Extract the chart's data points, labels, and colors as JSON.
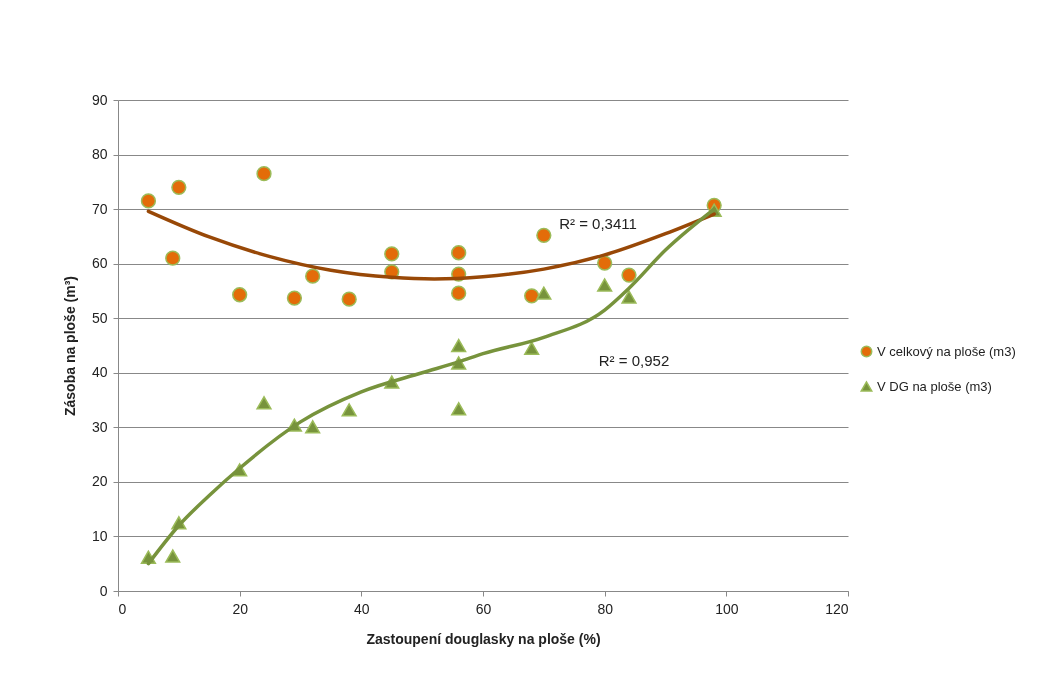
{
  "chart_data": {
    "type": "scatter",
    "xlabel": "Zastoupení douglasky na ploše (%)",
    "ylabel": "Zásoba na ploše (m³)",
    "xlim": [
      0,
      120
    ],
    "xticks": [
      0,
      20,
      40,
      60,
      80,
      100,
      120
    ],
    "ylim": [
      0,
      90
    ],
    "yticks": [
      0,
      10,
      20,
      30,
      40,
      50,
      60,
      70,
      80,
      90
    ],
    "grid": "y",
    "legend": "right",
    "series": [
      {
        "name": "V celkový na ploše (m3)",
        "color": "#e36c09",
        "marker": "circle",
        "x": [
          5,
          10,
          9,
          24,
          20,
          29,
          32,
          38,
          45,
          45,
          56,
          56,
          56,
          70,
          68,
          80,
          84,
          98
        ],
        "values": [
          71.5,
          74,
          61,
          76.5,
          54.3,
          53.7,
          57.7,
          53.5,
          61.8,
          58.5,
          62,
          58.1,
          54.6,
          65.2,
          54.1,
          60.1,
          57.9,
          70.7
        ]
      },
      {
        "name": "V DG na ploše (m3)",
        "color": "#77933c",
        "marker": "triangle",
        "x": [
          5,
          9,
          10,
          20,
          24,
          29,
          32,
          38,
          45,
          56,
          56,
          56,
          68,
          70,
          80,
          84,
          98
        ],
        "values": [
          6.2,
          6.4,
          12.5,
          22.2,
          34.5,
          30.4,
          30.1,
          33.2,
          38.3,
          45,
          41.8,
          33.4,
          44.5,
          54.6,
          56.1,
          53.9,
          69.8
        ]
      },
      {
        "type": "line",
        "color": "#984807",
        "x": [
          5,
          15,
          25,
          35,
          45,
          52,
          60,
          70,
          80,
          90,
          98
        ],
        "values": [
          69.6,
          64.9,
          61.3,
          58.8,
          57.5,
          57.2,
          57.6,
          59,
          61.6,
          65.5,
          69.1
        ]
      },
      {
        "type": "line",
        "color": "#77933c",
        "x": [
          5,
          10,
          15,
          20,
          30,
          40,
          50,
          56,
          60,
          70,
          80,
          84,
          90,
          98
        ],
        "values": [
          5,
          12,
          17.5,
          22.5,
          31,
          36.5,
          40,
          42,
          43.5,
          46.5,
          51.5,
          55.5,
          62.5,
          70
        ]
      }
    ],
    "annotations": [
      "R² = 0,3411",
      "R² = 0,952"
    ]
  }
}
